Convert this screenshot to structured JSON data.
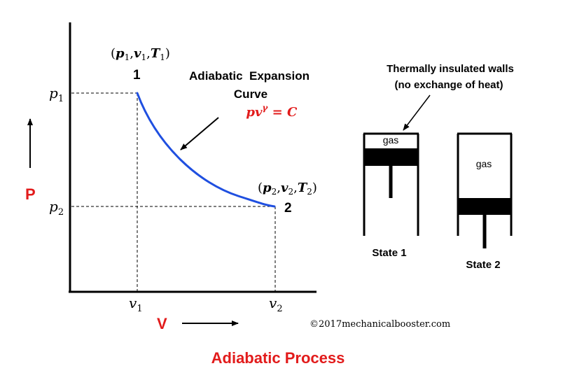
{
  "title": "Adiabatic Process",
  "axes": {
    "y_label": "P",
    "x_label": "V",
    "y_ticks": [
      {
        "main": "p",
        "sub": "1"
      },
      {
        "main": "p",
        "sub": "2"
      }
    ],
    "x_ticks": [
      {
        "main": "v",
        "sub": "1"
      },
      {
        "main": "v",
        "sub": "2"
      }
    ]
  },
  "states": {
    "point1": {
      "number": "1",
      "tuple": {
        "open": "(",
        "p": "p",
        "p_sub": "1",
        "v": "v",
        "v_sub": "1",
        "t": "T",
        "t_sub": "1",
        "close": ")",
        "sep": ","
      }
    },
    "point2": {
      "number": "2",
      "tuple": {
        "open": "(",
        "p": "p",
        "p_sub": "2",
        "v": "v",
        "v_sub": "2",
        "t": "T",
        "t_sub": "2",
        "close": ")",
        "sep": ","
      }
    }
  },
  "curve": {
    "label_line1": "Adiabatic  Expansion",
    "label_line2": "Curve",
    "equation": {
      "p": "p",
      "v": "v",
      "exp": "γ",
      "rest": " = C"
    }
  },
  "cylinders": {
    "note_line1": "Thermally insulated walls",
    "note_line2": "(no exchange of heat)",
    "state1": {
      "gas_label": "gas",
      "caption": "State 1"
    },
    "state2": {
      "gas_label": "gas",
      "caption": "State 2"
    }
  },
  "copyright": "©2017mechanicalbooster.com",
  "colors": {
    "accent_red": "#e21b1b",
    "curve_blue": "#1f4fe0",
    "ink": "#000000"
  }
}
